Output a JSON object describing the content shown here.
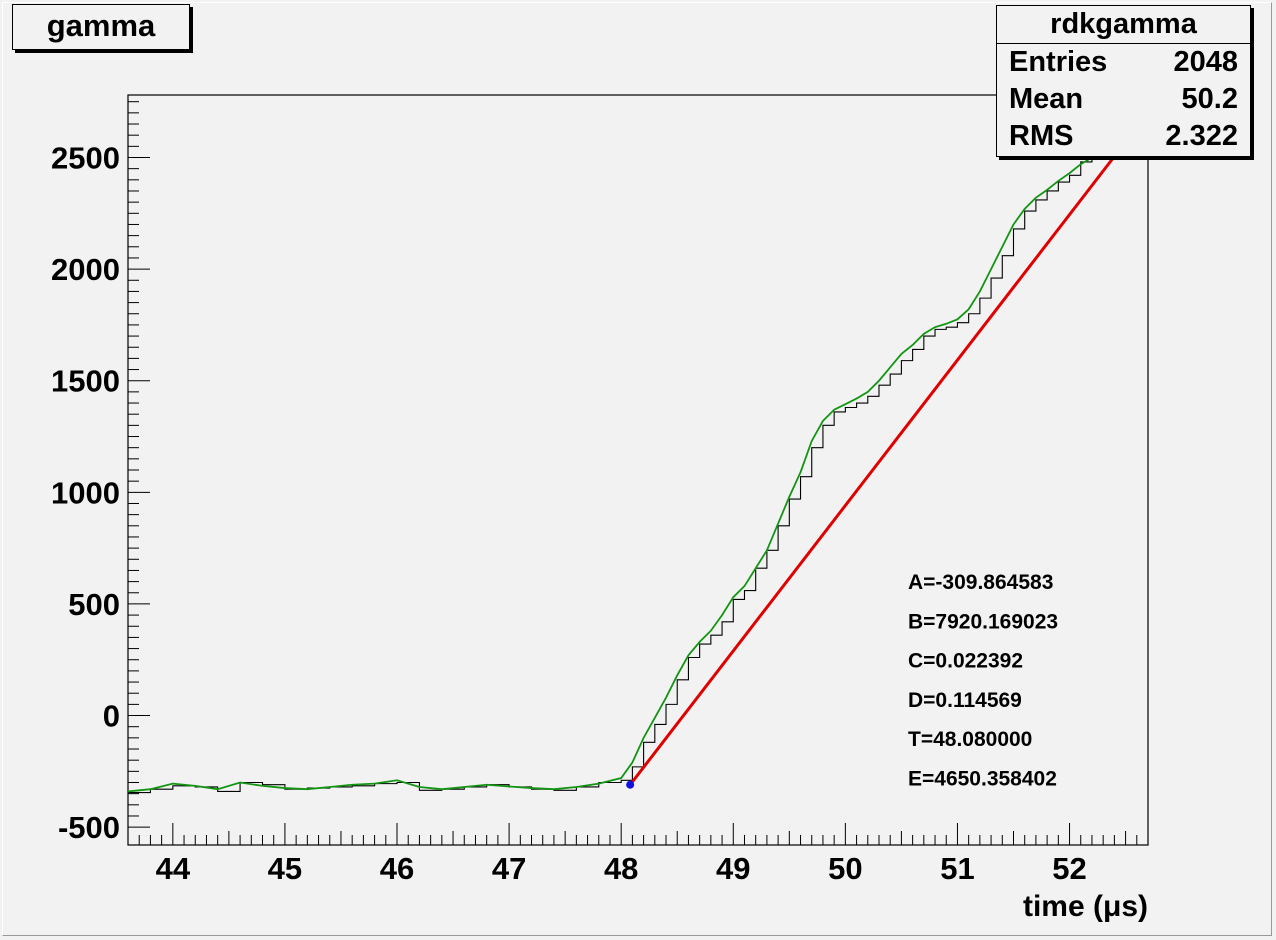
{
  "chart_data": {
    "type": "line",
    "title": "gamma",
    "xlabel": "time (μs)",
    "ylabel": "",
    "xlim": [
      43.6,
      52.7
    ],
    "ylim": [
      -580,
      2780
    ],
    "x_ticks": [
      "44",
      "45",
      "46",
      "47",
      "48",
      "49",
      "50",
      "51",
      "52"
    ],
    "y_ticks": [
      "-500",
      "0",
      "500",
      "1000",
      "1500",
      "2000",
      "2500"
    ],
    "stats": {
      "name": "rdkgamma",
      "rows": [
        {
          "label": "Entries",
          "value": "2048"
        },
        {
          "label": "Mean",
          "value": "50.2"
        },
        {
          "label": "RMS",
          "value": "2.322"
        }
      ]
    },
    "fit_params": [
      "A=-309.864583",
      "B=7920.169023",
      "C=0.022392",
      "D=0.114569",
      "T=48.080000",
      "E=4650.358402"
    ],
    "series": [
      {
        "style": "histogram",
        "color": "#000000",
        "x": [
          43.6,
          43.8,
          44.0,
          44.2,
          44.4,
          44.6,
          44.8,
          45.0,
          45.2,
          45.4,
          45.6,
          45.8,
          46.0,
          46.2,
          46.4,
          46.6,
          46.8,
          47.0,
          47.2,
          47.4,
          47.6,
          47.8,
          48.0,
          48.1,
          48.2,
          48.3,
          48.4,
          48.5,
          48.6,
          48.7,
          48.8,
          48.9,
          49.0,
          49.1,
          49.2,
          49.3,
          49.4,
          49.5,
          49.6,
          49.7,
          49.8,
          49.9,
          50.0,
          50.1,
          50.2,
          50.3,
          50.4,
          50.5,
          50.6,
          50.7,
          50.8,
          50.9,
          51.0,
          51.1,
          51.2,
          51.3,
          51.4,
          51.5,
          51.6,
          51.7,
          51.8,
          51.9,
          52.0,
          52.1,
          52.2,
          52.3,
          52.4,
          52.5
        ],
        "values": [
          -345,
          -330,
          -315,
          -320,
          -340,
          -300,
          -310,
          -330,
          -325,
          -320,
          -315,
          -305,
          -300,
          -335,
          -330,
          -320,
          -310,
          -320,
          -330,
          -335,
          -320,
          -300,
          -290,
          -230,
          -120,
          -40,
          50,
          160,
          260,
          320,
          360,
          420,
          520,
          560,
          660,
          740,
          850,
          970,
          1070,
          1200,
          1300,
          1360,
          1380,
          1400,
          1430,
          1480,
          1530,
          1590,
          1640,
          1700,
          1730,
          1740,
          1760,
          1800,
          1870,
          1960,
          2060,
          2180,
          2260,
          2310,
          2350,
          2390,
          2420,
          2480,
          2500,
          2530,
          2560,
          2580
        ]
      },
      {
        "name": "fit",
        "style": "line",
        "color": "#e00000",
        "x": [
          48.08,
          52.5
        ],
        "values": [
          -310,
          2570
        ]
      },
      {
        "name": "smooth",
        "style": "line",
        "color": "#129612",
        "x": [
          43.6,
          43.8,
          44.0,
          44.2,
          44.4,
          44.6,
          44.8,
          45.0,
          45.2,
          45.4,
          45.6,
          45.8,
          46.0,
          46.2,
          46.4,
          46.6,
          46.8,
          47.0,
          47.2,
          47.4,
          47.6,
          47.8,
          48.0,
          48.1,
          48.2,
          48.3,
          48.4,
          48.5,
          48.6,
          48.7,
          48.8,
          48.9,
          49.0,
          49.1,
          49.2,
          49.3,
          49.4,
          49.5,
          49.6,
          49.7,
          49.8,
          49.9,
          50.0,
          50.1,
          50.2,
          50.3,
          50.4,
          50.5,
          50.6,
          50.7,
          50.8,
          50.9,
          51.0,
          51.1,
          51.2,
          51.3,
          51.4,
          51.5,
          51.6,
          51.7,
          51.8,
          51.9,
          52.0,
          52.1,
          52.2,
          52.3,
          52.4,
          52.5,
          52.6,
          52.66
        ],
        "values": [
          -340,
          -330,
          -305,
          -315,
          -330,
          -300,
          -315,
          -325,
          -330,
          -320,
          -310,
          -305,
          -290,
          -320,
          -330,
          -320,
          -310,
          -318,
          -325,
          -330,
          -320,
          -305,
          -280,
          -210,
          -100,
          -10,
          80,
          180,
          270,
          330,
          380,
          450,
          530,
          580,
          660,
          740,
          860,
          980,
          1090,
          1230,
          1320,
          1370,
          1395,
          1420,
          1450,
          1500,
          1560,
          1620,
          1660,
          1710,
          1740,
          1755,
          1775,
          1820,
          1900,
          2000,
          2100,
          2200,
          2270,
          2320,
          2355,
          2395,
          2430,
          2470,
          2500,
          2520,
          2550,
          2575,
          2585,
          2560
        ]
      }
    ],
    "marker": {
      "x": 48.08,
      "value": -310,
      "color": "#1010e0"
    }
  }
}
